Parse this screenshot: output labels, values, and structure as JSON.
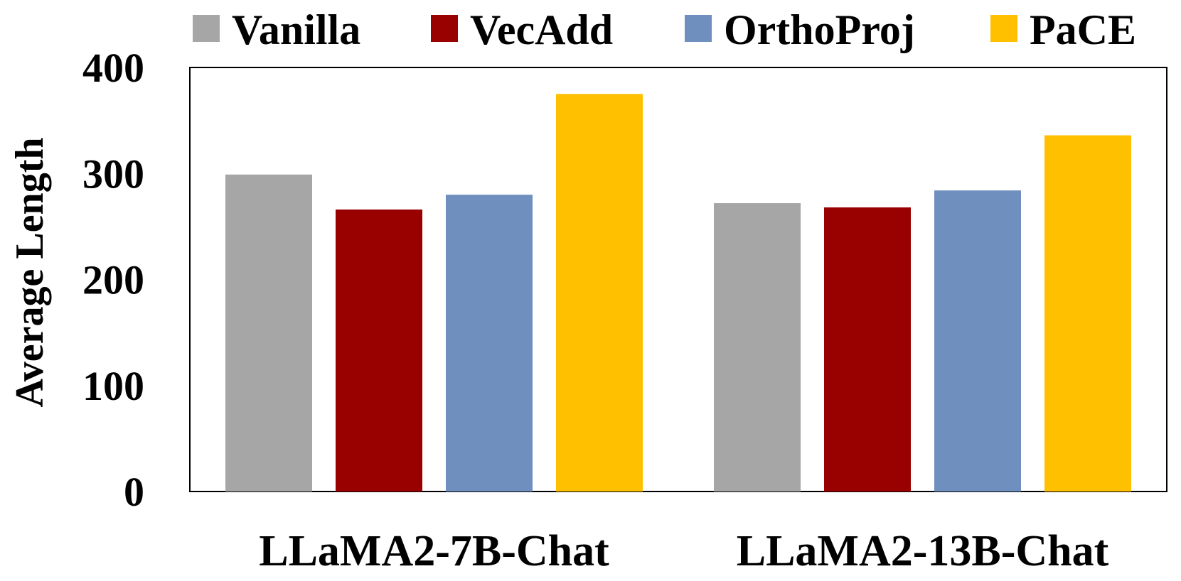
{
  "chart_data": {
    "type": "bar",
    "categories": [
      "LLaMA2-7B-Chat",
      "LLaMA2-13B-Chat"
    ],
    "series": [
      {
        "name": "Vanilla",
        "values": [
          299,
          272
        ],
        "color": "#A6A6A6"
      },
      {
        "name": "VecAdd",
        "values": [
          266,
          268
        ],
        "color": "#990000"
      },
      {
        "name": "OrthoProj",
        "values": [
          280,
          284
        ],
        "color": "#6F8FBE"
      },
      {
        "name": "PaCE",
        "values": [
          375,
          336
        ],
        "color": "#FFC000"
      }
    ],
    "title": "",
    "xlabel": "",
    "ylabel": "Average Length",
    "ylim": [
      0,
      400
    ],
    "yticks": [
      "0",
      "100",
      "200",
      "300",
      "400"
    ],
    "legend": "top",
    "grid": false
  }
}
